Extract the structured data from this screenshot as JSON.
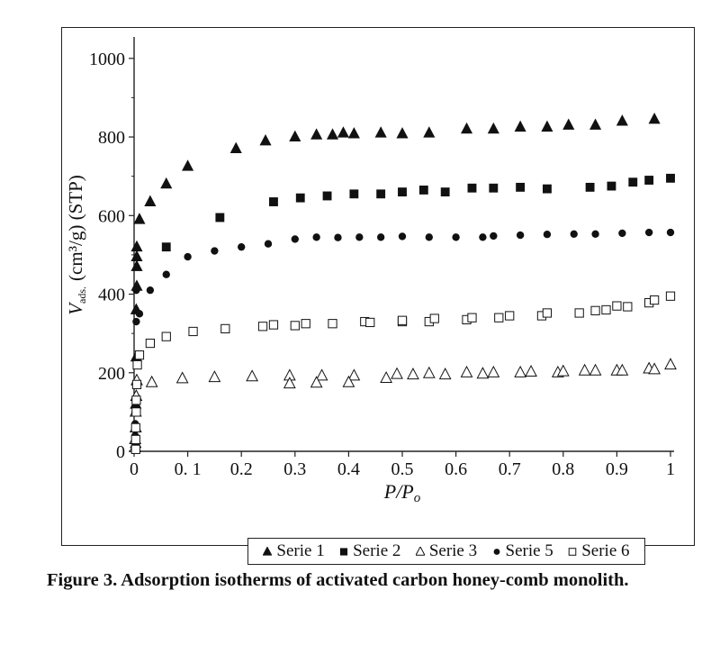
{
  "caption": "Figure 3. Adsorption isotherms of activated carbon honey-comb monolith.",
  "chart_data": {
    "type": "scatter",
    "xlabel": "P/Po",
    "ylabel_main": "V",
    "ylabel_sub": "ads.",
    "ylabel_rest": "(cm³/g) (STP)",
    "xlim": [
      0,
      1
    ],
    "ylim": [
      0,
      1050
    ],
    "x_ticks": [
      0,
      0.1,
      0.2,
      0.3,
      0.4,
      0.5,
      0.6,
      0.7,
      0.8,
      0.9,
      1
    ],
    "x_tick_labels": [
      "0",
      "0. 1",
      "0.2",
      "0.3",
      "0.4",
      "0.5",
      "0.6",
      "0.7",
      "0.8",
      "0.9",
      "1"
    ],
    "y_ticks": [
      0,
      200,
      400,
      600,
      800,
      1000
    ],
    "y_tick_labels": [
      "0",
      "200",
      "400",
      "600",
      "800",
      "1000"
    ],
    "grid": false,
    "legend_position": "bottom-center",
    "series": [
      {
        "name": "Serie 1",
        "marker": "triangle-filled",
        "points": [
          [
            0.003,
            20
          ],
          [
            0.003,
            120
          ],
          [
            0.004,
            240
          ],
          [
            0.004,
            360
          ],
          [
            0.005,
            420
          ],
          [
            0.005,
            470
          ],
          [
            0.005,
            495
          ],
          [
            0.005,
            520
          ],
          [
            0.01,
            590
          ],
          [
            0.03,
            635
          ],
          [
            0.06,
            680
          ],
          [
            0.1,
            725
          ],
          [
            0.19,
            770
          ],
          [
            0.245,
            790
          ],
          [
            0.3,
            800
          ],
          [
            0.34,
            805
          ],
          [
            0.37,
            805
          ],
          [
            0.39,
            810
          ],
          [
            0.41,
            808
          ],
          [
            0.46,
            810
          ],
          [
            0.5,
            808
          ],
          [
            0.55,
            810
          ],
          [
            0.62,
            820
          ],
          [
            0.67,
            820
          ],
          [
            0.72,
            825
          ],
          [
            0.77,
            825
          ],
          [
            0.81,
            830
          ],
          [
            0.86,
            830
          ],
          [
            0.91,
            840
          ],
          [
            0.97,
            845
          ]
        ]
      },
      {
        "name": "Serie 2",
        "marker": "square-filled",
        "points": [
          [
            0.06,
            520
          ],
          [
            0.16,
            595
          ],
          [
            0.26,
            635
          ],
          [
            0.31,
            645
          ],
          [
            0.36,
            650
          ],
          [
            0.41,
            655
          ],
          [
            0.46,
            655
          ],
          [
            0.5,
            660
          ],
          [
            0.54,
            665
          ],
          [
            0.58,
            660
          ],
          [
            0.63,
            670
          ],
          [
            0.67,
            670
          ],
          [
            0.72,
            672
          ],
          [
            0.77,
            668
          ],
          [
            0.85,
            672
          ],
          [
            0.89,
            675
          ],
          [
            0.93,
            685
          ],
          [
            0.96,
            690
          ],
          [
            1.0,
            695
          ]
        ]
      },
      {
        "name": "Serie 3",
        "marker": "triangle-open",
        "points": [
          [
            0.002,
            10
          ],
          [
            0.002,
            30
          ],
          [
            0.003,
            60
          ],
          [
            0.003,
            100
          ],
          [
            0.004,
            140
          ],
          [
            0.005,
            180
          ],
          [
            0.033,
            175
          ],
          [
            0.09,
            185
          ],
          [
            0.15,
            188
          ],
          [
            0.22,
            190
          ],
          [
            0.29,
            192
          ],
          [
            0.29,
            172
          ],
          [
            0.35,
            192
          ],
          [
            0.34,
            174
          ],
          [
            0.41,
            192
          ],
          [
            0.4,
            175
          ],
          [
            0.47,
            186
          ],
          [
            0.49,
            196
          ],
          [
            0.52,
            195
          ],
          [
            0.55,
            198
          ],
          [
            0.58,
            195
          ],
          [
            0.62,
            200
          ],
          [
            0.65,
            197
          ],
          [
            0.67,
            200
          ],
          [
            0.72,
            200
          ],
          [
            0.74,
            202
          ],
          [
            0.79,
            200
          ],
          [
            0.8,
            203
          ],
          [
            0.84,
            205
          ],
          [
            0.86,
            205
          ],
          [
            0.9,
            205
          ],
          [
            0.91,
            205
          ],
          [
            0.96,
            210
          ],
          [
            0.97,
            208
          ],
          [
            1.0,
            220
          ]
        ]
      },
      {
        "name": "Serie 5",
        "marker": "circle-filled",
        "points": [
          [
            0.002,
            15
          ],
          [
            0.002,
            40
          ],
          [
            0.002,
            70
          ],
          [
            0.003,
            120
          ],
          [
            0.003,
            170
          ],
          [
            0.004,
            230
          ],
          [
            0.004,
            330
          ],
          [
            0.004,
            410
          ],
          [
            0.01,
            350
          ],
          [
            0.03,
            410
          ],
          [
            0.06,
            450
          ],
          [
            0.1,
            495
          ],
          [
            0.15,
            510
          ],
          [
            0.2,
            520
          ],
          [
            0.25,
            528
          ],
          [
            0.3,
            540
          ],
          [
            0.34,
            545
          ],
          [
            0.38,
            544
          ],
          [
            0.42,
            545
          ],
          [
            0.46,
            545
          ],
          [
            0.5,
            547
          ],
          [
            0.55,
            545
          ],
          [
            0.6,
            545
          ],
          [
            0.65,
            545
          ],
          [
            0.67,
            548
          ],
          [
            0.72,
            550
          ],
          [
            0.77,
            552
          ],
          [
            0.82,
            553
          ],
          [
            0.86,
            553
          ],
          [
            0.91,
            555
          ],
          [
            0.96,
            557
          ],
          [
            1.0,
            557
          ]
        ]
      },
      {
        "name": "Serie 6",
        "marker": "square-open",
        "points": [
          [
            0.003,
            5
          ],
          [
            0.003,
            30
          ],
          [
            0.003,
            60
          ],
          [
            0.004,
            100
          ],
          [
            0.004,
            130
          ],
          [
            0.005,
            170
          ],
          [
            0.006,
            220
          ],
          [
            0.01,
            245
          ],
          [
            0.03,
            275
          ],
          [
            0.06,
            292
          ],
          [
            0.11,
            305
          ],
          [
            0.17,
            312
          ],
          [
            0.24,
            318
          ],
          [
            0.26,
            322
          ],
          [
            0.3,
            320
          ],
          [
            0.32,
            325
          ],
          [
            0.37,
            325
          ],
          [
            0.43,
            330
          ],
          [
            0.44,
            328
          ],
          [
            0.5,
            330
          ],
          [
            0.5,
            333
          ],
          [
            0.55,
            330
          ],
          [
            0.56,
            338
          ],
          [
            0.62,
            335
          ],
          [
            0.63,
            340
          ],
          [
            0.68,
            340
          ],
          [
            0.7,
            345
          ],
          [
            0.76,
            345
          ],
          [
            0.77,
            352
          ],
          [
            0.83,
            352
          ],
          [
            0.86,
            358
          ],
          [
            0.88,
            360
          ],
          [
            0.9,
            370
          ],
          [
            0.92,
            368
          ],
          [
            0.96,
            378
          ],
          [
            0.97,
            385
          ],
          [
            1.0,
            395
          ]
        ]
      }
    ]
  }
}
